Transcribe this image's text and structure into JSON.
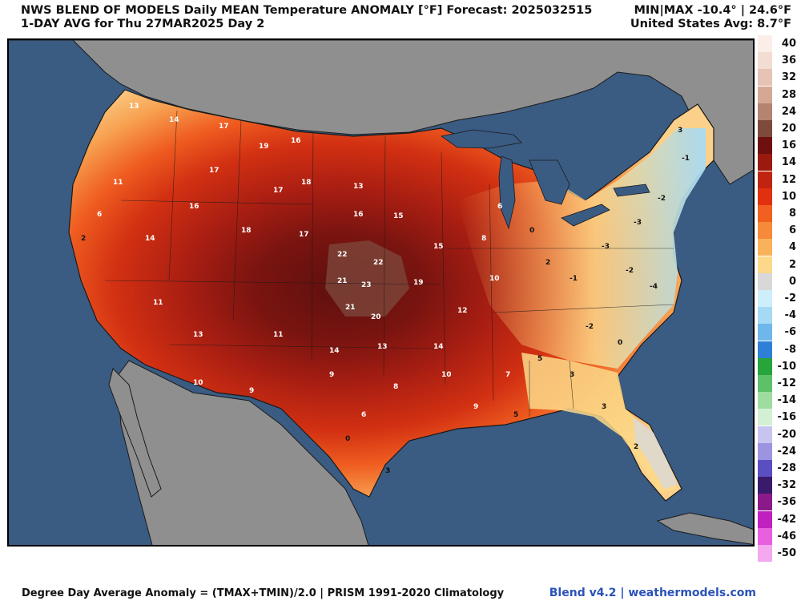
{
  "header": {
    "title_line1": "NWS BLEND OF MODELS Daily MEAN Temperature ANOMALY [°F] Forecast: 2025032515",
    "title_line2": "1-DAY AVG for Thu 27MAR2025 Day 2",
    "minmax": "MIN|MAX -10.4° | 24.6°F",
    "us_avg": "United States Avg: 8.7°F"
  },
  "footer": {
    "formula": "Degree Day Average Anomaly = (TMAX+TMIN)/2.0 | PRISM 1991-2020 Climatology",
    "credit": "Blend v4.2 | weathermodels.com"
  },
  "legend": [
    {
      "label": "40",
      "color": "#fbeee8"
    },
    {
      "label": "36",
      "color": "#f3ddd2"
    },
    {
      "label": "32",
      "color": "#e6c3b4"
    },
    {
      "label": "28",
      "color": "#d4a894"
    },
    {
      "label": "24",
      "color": "#b58471"
    },
    {
      "label": "20",
      "color": "#7d4a3c"
    },
    {
      "label": "16",
      "color": "#6e1010"
    },
    {
      "label": "14",
      "color": "#9a1a10"
    },
    {
      "label": "12",
      "color": "#c02410"
    },
    {
      "label": "10",
      "color": "#e03010"
    },
    {
      "label": "8",
      "color": "#f06020"
    },
    {
      "label": "6",
      "color": "#f68a3a"
    },
    {
      "label": "4",
      "color": "#f9b25a"
    },
    {
      "label": "2",
      "color": "#fcd98a"
    },
    {
      "label": "0",
      "color": "#d8d8d8"
    },
    {
      "label": "-2",
      "color": "#cdeefa"
    },
    {
      "label": "-4",
      "color": "#a6daf4"
    },
    {
      "label": "-6",
      "color": "#6fb6ea"
    },
    {
      "label": "-8",
      "color": "#2f7fd6"
    },
    {
      "label": "-10",
      "color": "#27a43a"
    },
    {
      "label": "-12",
      "color": "#5fc06a"
    },
    {
      "label": "-14",
      "color": "#9fdca0"
    },
    {
      "label": "-16",
      "color": "#d4f0d4"
    },
    {
      "label": "-20",
      "color": "#c8c4f0"
    },
    {
      "label": "-24",
      "color": "#9c94e0"
    },
    {
      "label": "-28",
      "color": "#5a4ec0"
    },
    {
      "label": "-32",
      "color": "#3a1a6a"
    },
    {
      "label": "-36",
      "color": "#8a1a8a"
    },
    {
      "label": "-42",
      "color": "#c020c0"
    },
    {
      "label": "-46",
      "color": "#e860e0"
    },
    {
      "label": "-50",
      "color": "#f4a8f0"
    }
  ],
  "map_colors": {
    "ocean": "#3a5b82",
    "land_outside": "#8f8f8f",
    "border": "#1a1a1a"
  },
  "values": [
    "13",
    "14",
    "17",
    "19",
    "17",
    "16",
    "16",
    "15",
    "18",
    "22",
    "22",
    "23",
    "21",
    "20",
    "19",
    "15",
    "13",
    "11",
    "14",
    "9",
    "8",
    "6",
    "10",
    "12",
    "5",
    "3",
    "2",
    "-1",
    "-2",
    "-3",
    "-4",
    "0",
    "1",
    "4",
    "7"
  ]
}
